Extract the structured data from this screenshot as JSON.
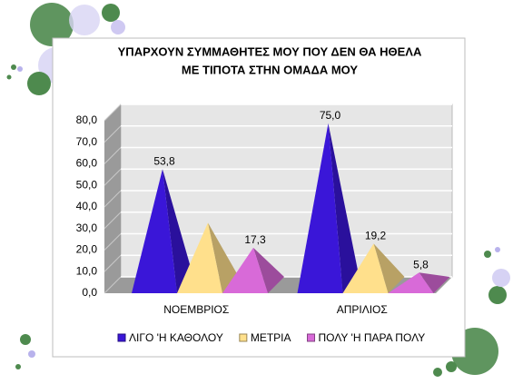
{
  "chart_data": {
    "type": "pyramid3d",
    "title": [
      "ΥΠΑΡΧΟΥΝ ΣΥΜΜΑΘΗΤΕΣ ΜΟΥ ΠΟΥ ΔΕΝ ΘΑ ΗΘΕΛΑ",
      "ΜΕ ΤΙΠΟΤΑ ΣΤΗΝ ΟΜΑΔΑ ΜΟΥ"
    ],
    "categories": [
      "ΝΟΕΜΒΡΙΟΣ",
      "ΑΠΡΙΛΙΟΣ"
    ],
    "series": [
      {
        "name": "ΛΙΓΟ 'Η ΚΑΘΟΛΟΥ",
        "color": "#3a16d8",
        "values": [
          53.8,
          75.0
        ],
        "value_labels": [
          "53,8",
          "75,0"
        ]
      },
      {
        "name": "ΜΕΤΡΙΑ",
        "color": "#ffe08c",
        "values": [
          28.9,
          19.2
        ],
        "value_labels": [
          null,
          "19,2"
        ]
      },
      {
        "name": "ΠΟΛΥ 'Η ΠΑΡΑ ΠΟΛΥ",
        "color": "#d86ad8",
        "values": [
          17.3,
          5.8
        ],
        "value_labels": [
          "17,3",
          "5,8"
        ]
      }
    ],
    "ylim": [
      0,
      80
    ],
    "yticks": [
      {
        "value": 0,
        "label": "0,0"
      },
      {
        "value": 10,
        "label": "10,0"
      },
      {
        "value": 20,
        "label": "20,0"
      },
      {
        "value": 30,
        "label": "30,0"
      },
      {
        "value": 40,
        "label": "40,0"
      },
      {
        "value": 50,
        "label": "50,0"
      },
      {
        "value": 60,
        "label": "60,0"
      },
      {
        "value": 70,
        "label": "70,0"
      },
      {
        "value": 80,
        "label": "80,0"
      }
    ],
    "grid": true
  }
}
